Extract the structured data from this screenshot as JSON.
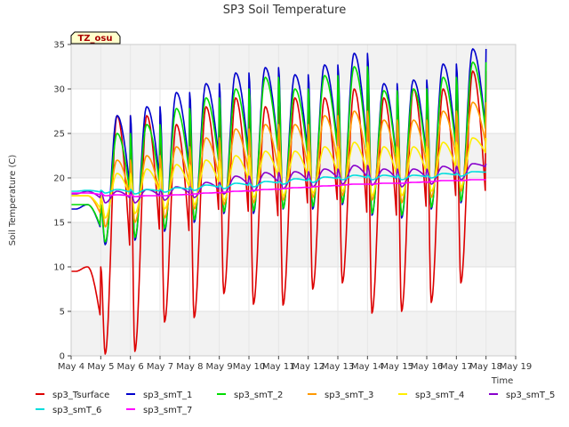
{
  "chart_data": {
    "type": "line",
    "title": "SP3 Soil Temperature",
    "xlabel": "Time",
    "ylabel": "Soil Temperature (C)",
    "badge": "TZ_osu",
    "xlim": [
      0,
      15
    ],
    "ylim": [
      0,
      35
    ],
    "yticks": [
      0,
      5,
      10,
      15,
      20,
      25,
      30,
      35
    ],
    "xticks": [
      0,
      1,
      2,
      3,
      4,
      5,
      6,
      7,
      8,
      9,
      10,
      11,
      12,
      13,
      14,
      15
    ],
    "xtick_labels": [
      "May 4",
      "May 5",
      "May 6",
      "May 7",
      "May 8",
      "May 9",
      "May 10",
      "May 11",
      "May 12",
      "May 13",
      "May 14",
      "May 15",
      "May 16",
      "May 17",
      "May 18",
      "May 19"
    ],
    "bands": [
      [
        0,
        5
      ],
      [
        10,
        15
      ],
      [
        20,
        25
      ],
      [
        30,
        35
      ]
    ],
    "x_end": 14.0,
    "series": [
      {
        "name": "sp3_Tsurface",
        "color": "#dd0000",
        "min": [
          9.5,
          0.2,
          0.5,
          3.8,
          4.3,
          7.0,
          5.8,
          5.7,
          7.5,
          8.2,
          4.8,
          5.0,
          6.0,
          8.2,
          7.6
        ],
        "max": [
          10,
          27,
          27,
          26,
          28,
          29,
          28,
          29,
          29,
          30,
          29,
          30,
          30,
          32,
          30
        ]
      },
      {
        "name": "sp3_smT_1",
        "color": "#0000cc",
        "min": [
          16.5,
          12.5,
          13.0,
          14.0,
          15.0,
          16.0,
          16.0,
          16.5,
          16.5,
          17.0,
          15.8,
          15.5,
          16.5,
          17.2,
          19.0
        ],
        "max": [
          17,
          27.0,
          28.0,
          29.6,
          30.6,
          31.8,
          32.4,
          31.6,
          32.7,
          34.0,
          30.6,
          31.0,
          32.8,
          34.5,
          34.2
        ]
      },
      {
        "name": "sp3_smT_2",
        "color": "#00dd00",
        "min": [
          17.0,
          12.8,
          13.3,
          14.3,
          15.3,
          16.2,
          16.3,
          16.6,
          16.8,
          17.2,
          16.0,
          15.8,
          16.7,
          17.4,
          19.5
        ],
        "max": [
          17,
          25.0,
          26.0,
          27.8,
          29.0,
          30.0,
          31.3,
          30.0,
          31.5,
          32.5,
          29.8,
          30.0,
          31.3,
          33.0,
          32.5
        ]
      },
      {
        "name": "sp3_smT_3",
        "color": "#ff9900",
        "min": [
          18.0,
          14.5,
          15.0,
          15.5,
          16.5,
          17.0,
          17.2,
          17.5,
          17.8,
          18.0,
          17.5,
          17.2,
          17.8,
          18.5,
          20.5
        ],
        "max": [
          18,
          22.0,
          22.5,
          23.5,
          24.5,
          25.5,
          26.0,
          26.0,
          27.0,
          27.5,
          26.5,
          26.5,
          27.5,
          28.5,
          28.0
        ]
      },
      {
        "name": "sp3_smT_4",
        "color": "#ffee00",
        "min": [
          18.0,
          15.5,
          16.0,
          16.5,
          17.0,
          17.5,
          17.8,
          18.0,
          18.3,
          18.5,
          18.0,
          18.0,
          18.5,
          19.0,
          21.5
        ],
        "max": [
          18,
          20.5,
          21.0,
          21.5,
          22.0,
          22.5,
          23.0,
          23.0,
          23.5,
          24.0,
          23.5,
          23.5,
          24.0,
          24.5,
          24.5
        ]
      },
      {
        "name": "sp3_smT_5",
        "color": "#8800cc",
        "min": [
          18.2,
          17.2,
          17.2,
          17.5,
          17.8,
          18.2,
          18.5,
          18.8,
          19.0,
          19.3,
          19.2,
          19.0,
          19.3,
          19.8,
          21.0
        ],
        "max": [
          18.5,
          18.5,
          18.7,
          19.0,
          19.5,
          20.2,
          20.6,
          20.7,
          21.0,
          21.4,
          21.0,
          21.0,
          21.3,
          21.6,
          21.8
        ]
      },
      {
        "name": "sp3_smT_6",
        "color": "#00dddd",
        "min": [
          18.5,
          18.3,
          18.2,
          18.4,
          18.6,
          18.8,
          19.0,
          19.3,
          19.5,
          19.8,
          19.8,
          19.8,
          20.0,
          20.2,
          20.6
        ],
        "max": [
          18.6,
          18.7,
          18.7,
          18.9,
          19.2,
          19.4,
          19.6,
          19.9,
          20.1,
          20.3,
          20.3,
          20.3,
          20.5,
          20.7,
          20.9
        ]
      },
      {
        "name": "sp3_smT_7",
        "color": "#ff00ff",
        "min": [
          18.3,
          18.0,
          17.9,
          18.0,
          18.2,
          18.4,
          18.6,
          18.8,
          19.0,
          19.2,
          19.3,
          19.4,
          19.6,
          19.7,
          19.8
        ],
        "max": [
          18.3,
          18.1,
          18.0,
          18.1,
          18.3,
          18.5,
          18.7,
          18.9,
          19.1,
          19.3,
          19.4,
          19.5,
          19.7,
          19.8,
          19.9
        ]
      }
    ]
  }
}
